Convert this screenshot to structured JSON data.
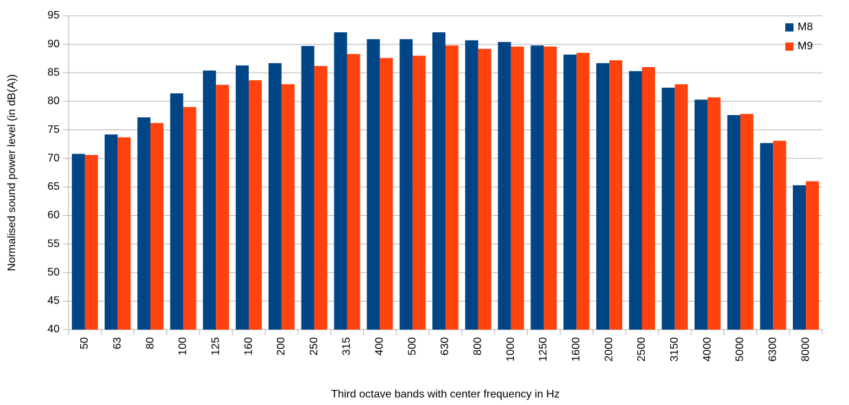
{
  "chart_data": {
    "type": "bar",
    "x_label": "Third octave bands with center frequency in Hz",
    "y_label": "Normalised sound power level (in dB(A))",
    "categories": [
      "50",
      "63",
      "80",
      "100",
      "125",
      "160",
      "200",
      "250",
      "315",
      "400",
      "500",
      "630",
      "800",
      "1000",
      "1250",
      "1600",
      "2000",
      "2500",
      "3150",
      "4000",
      "5000",
      "6300",
      "8000"
    ],
    "series": [
      {
        "name": "M8",
        "color": "#004586",
        "values": [
          70.8,
          74.2,
          77.2,
          81.4,
          85.4,
          86.3,
          86.7,
          89.7,
          92.1,
          90.9,
          90.9,
          92.1,
          90.7,
          90.4,
          89.8,
          88.2,
          86.7,
          85.3,
          82.4,
          80.3,
          77.6,
          72.7,
          65.3
        ]
      },
      {
        "name": "M9",
        "color": "#ff420e",
        "values": [
          70.6,
          73.7,
          76.2,
          79.0,
          82.9,
          83.7,
          83.0,
          86.2,
          88.3,
          87.6,
          88.0,
          89.8,
          89.2,
          89.6,
          89.6,
          88.5,
          87.2,
          86.0,
          83.0,
          80.7,
          77.8,
          73.1,
          66.0
        ]
      }
    ],
    "ylim": [
      40,
      95
    ],
    "yticks": [
      40,
      45,
      50,
      55,
      60,
      65,
      70,
      75,
      80,
      85,
      90,
      95
    ],
    "grid": true,
    "legend": "top-right"
  }
}
